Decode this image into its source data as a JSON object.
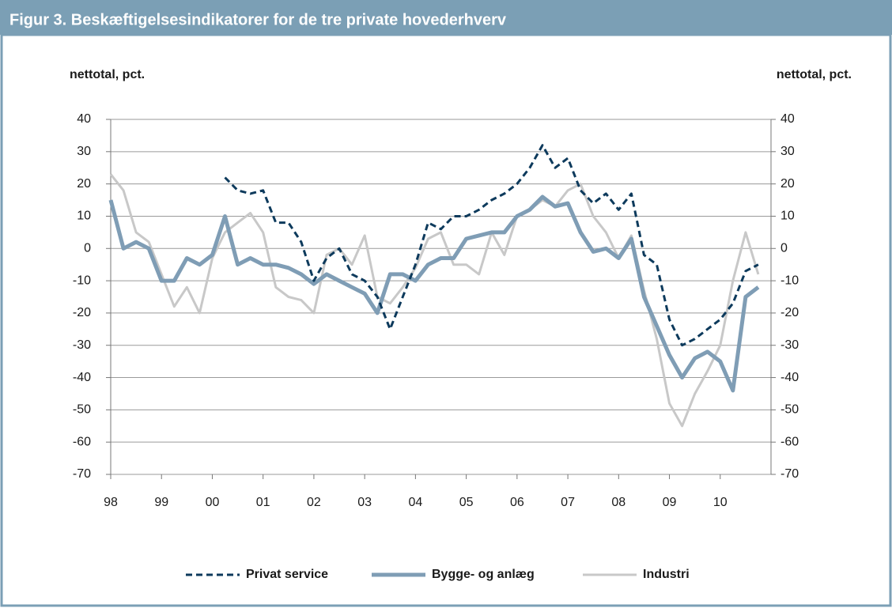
{
  "chart_data": {
    "type": "line",
    "title": "Figur 3. Beskæftigelsesindikatorer for de tre private hovederhverv",
    "y_label": "nettotal, pct.",
    "y2_label": "nettotal, pct.",
    "x": [
      1998,
      1998.25,
      1998.5,
      1998.75,
      1999,
      1999.25,
      1999.5,
      1999.75,
      2000,
      2000.25,
      2000.5,
      2000.75,
      2001,
      2001.25,
      2001.5,
      2001.75,
      2002,
      2002.25,
      2002.5,
      2002.75,
      2003,
      2003.25,
      2003.5,
      2003.75,
      2004,
      2004.25,
      2004.5,
      2004.75,
      2005,
      2005.25,
      2005.5,
      2005.75,
      2006,
      2006.25,
      2006.5,
      2006.75,
      2007,
      2007.25,
      2007.5,
      2007.75,
      2008,
      2008.25,
      2008.5,
      2008.75,
      2009,
      2009.25,
      2009.5,
      2009.75,
      2010,
      2010.25,
      2010.5,
      2010.75
    ],
    "series": [
      {
        "name": "Privat service",
        "color": "#0d3a5c",
        "dash": true,
        "values": [
          null,
          null,
          null,
          null,
          null,
          null,
          null,
          null,
          null,
          22,
          18,
          17,
          18,
          8,
          8,
          2,
          -10,
          -3,
          0,
          -8,
          -10,
          -15,
          -25,
          -15,
          -5,
          8,
          6,
          10,
          10,
          12,
          15,
          17,
          20,
          25,
          32,
          25,
          28,
          18,
          14,
          17,
          12,
          17,
          -2,
          -5,
          -22,
          -30,
          -28,
          -25,
          -22,
          -17,
          -7,
          -5
        ]
      },
      {
        "name": "Bygge- og anlæg",
        "color": "#7f9db5",
        "dash": false,
        "values": [
          15,
          0,
          2,
          0,
          -10,
          -10,
          -3,
          -5,
          -2,
          10,
          -5,
          -3,
          -5,
          -5,
          -6,
          -8,
          -11,
          -8,
          -10,
          -12,
          -14,
          -20,
          -8,
          -8,
          -10,
          -5,
          -3,
          -3,
          3,
          4,
          5,
          5,
          10,
          12,
          16,
          13,
          14,
          5,
          -1,
          0,
          -3,
          3,
          -15,
          -24,
          -33,
          -40,
          -34,
          -32,
          -35,
          -44,
          -15,
          -12
        ]
      },
      {
        "name": "Industri",
        "color": "#c8c8c8",
        "dash": false,
        "values": [
          23,
          18,
          5,
          2,
          -8,
          -18,
          -12,
          -20,
          -3,
          5,
          8,
          11,
          5,
          -12,
          -15,
          -16,
          -20,
          -2,
          0,
          -5,
          4,
          -15,
          -17,
          -12,
          -6,
          3,
          5,
          -5,
          -5,
          -8,
          5,
          -2,
          10,
          12,
          15,
          13,
          18,
          20,
          10,
          5,
          -3,
          4,
          -13,
          -28,
          -48,
          -55,
          -45,
          -38,
          -30,
          -10,
          5,
          -8
        ]
      }
    ],
    "xlim": [
      1998,
      2011
    ],
    "xticks": [
      {
        "value": 1998,
        "label": "98"
      },
      {
        "value": 1999,
        "label": "99"
      },
      {
        "value": 2000,
        "label": "00"
      },
      {
        "value": 2001,
        "label": "01"
      },
      {
        "value": 2002,
        "label": "02"
      },
      {
        "value": 2003,
        "label": "03"
      },
      {
        "value": 2004,
        "label": "04"
      },
      {
        "value": 2005,
        "label": "05"
      },
      {
        "value": 2006,
        "label": "06"
      },
      {
        "value": 2007,
        "label": "07"
      },
      {
        "value": 2008,
        "label": "08"
      },
      {
        "value": 2009,
        "label": "09"
      },
      {
        "value": 2010,
        "label": "10"
      }
    ],
    "ylim": [
      -70,
      40
    ],
    "yticks": [
      -70,
      -60,
      -50,
      -40,
      -30,
      -20,
      -10,
      0,
      10,
      20,
      30,
      40
    ],
    "y2lim": [
      -70,
      40
    ],
    "y2ticks": [
      -70,
      -60,
      -50,
      -40,
      -30,
      -20,
      -10,
      0,
      10,
      20,
      30,
      40
    ],
    "grid": true,
    "legend": "bottom"
  }
}
